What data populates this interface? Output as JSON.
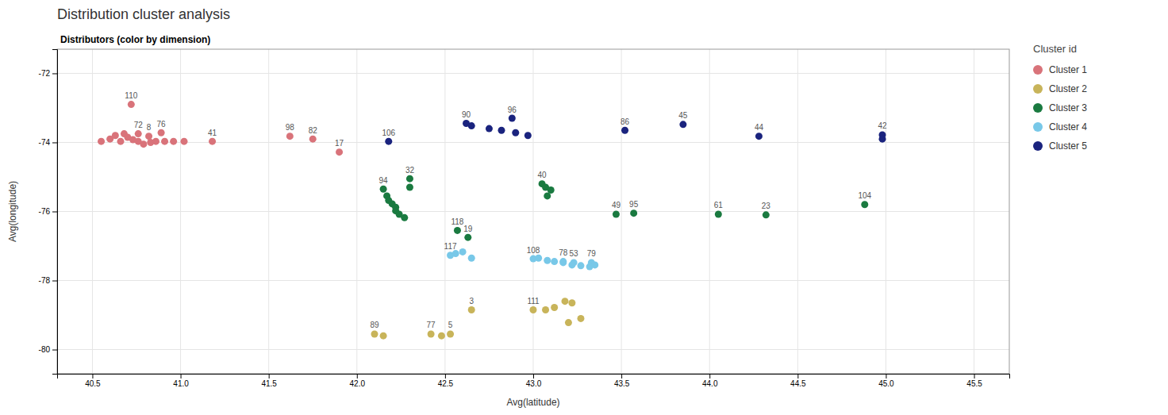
{
  "chart_data": {
    "type": "scatter",
    "title": "Distribution cluster analysis",
    "subtitle": "Distributors (color by dimension)",
    "x_label": "Avg(latitude)",
    "y_label": "Avg(longitude)",
    "xlim": [
      40.3,
      45.7
    ],
    "ylim": [
      -80.7,
      -71.3
    ],
    "xticks": [
      40.5,
      {
        "value": 41,
        "label": "41.0"
      },
      41.5,
      {
        "value": 42,
        "label": "42.0"
      },
      42.5,
      {
        "value": 43,
        "label": "43.0"
      },
      43.5,
      {
        "value": 44,
        "label": "44.0"
      },
      44.5,
      {
        "value": 45,
        "label": "45.0"
      },
      45.5
    ],
    "yticks": [
      -72,
      -74,
      -76,
      -78,
      -80
    ],
    "grid": true,
    "legend": "right",
    "legend_title": "Cluster id",
    "series": [
      {
        "name": "Cluster 1",
        "color": "#d9737a",
        "x": [
          40.72,
          40.76,
          40.82,
          40.89,
          41.18,
          41.62,
          41.75,
          41.9,
          40.55,
          40.6,
          40.63,
          40.66,
          40.68,
          40.7,
          40.73,
          40.76,
          40.79,
          40.83,
          40.86,
          40.91,
          40.96,
          41.02
        ],
        "values": [
          -72.9,
          -73.75,
          -73.82,
          -73.72,
          -73.97,
          -73.82,
          -73.9,
          -74.28,
          -73.97,
          -73.9,
          -73.8,
          -73.97,
          -73.75,
          -73.85,
          -73.92,
          -73.97,
          -74.05,
          -74.0,
          -73.97,
          -73.97,
          -73.97,
          -73.97
        ],
        "annotations": [
          "110",
          "72",
          "8",
          "76",
          "41",
          "98",
          "82",
          "17",
          null,
          null,
          null,
          null,
          null,
          null,
          null,
          null,
          null,
          null,
          null,
          null,
          null,
          null
        ]
      },
      {
        "name": "Cluster 2",
        "color": "#c8b45a",
        "x": [
          42.1,
          42.42,
          42.53,
          42.65,
          43.0,
          42.15,
          42.48,
          43.07,
          43.12,
          43.18,
          43.22,
          43.27,
          43.2
        ],
        "values": [
          -79.55,
          -79.55,
          -79.55,
          -78.85,
          -78.85,
          -79.6,
          -79.6,
          -78.85,
          -78.78,
          -78.6,
          -78.65,
          -79.1,
          -79.22
        ],
        "annotations": [
          "89",
          "77",
          "5",
          "3",
          "111",
          null,
          null,
          null,
          null,
          null,
          null,
          null,
          null
        ]
      },
      {
        "name": "Cluster 3",
        "color": "#1a7a40",
        "x": [
          42.15,
          42.3,
          42.57,
          42.63,
          43.05,
          43.47,
          43.57,
          44.05,
          44.32,
          44.88,
          42.17,
          42.18,
          42.2,
          42.22,
          42.22,
          42.24,
          42.27,
          42.3,
          43.07,
          43.1,
          43.08
        ],
        "values": [
          -75.35,
          -75.05,
          -76.55,
          -76.75,
          -75.2,
          -76.08,
          -76.05,
          -76.08,
          -76.1,
          -75.8,
          -75.55,
          -75.68,
          -75.78,
          -75.88,
          -75.98,
          -76.08,
          -76.18,
          -75.3,
          -75.3,
          -75.38,
          -75.55
        ],
        "annotations": [
          "94",
          "32",
          "118",
          "19",
          "40",
          "49",
          "95",
          "61",
          "23",
          "104",
          null,
          null,
          null,
          null,
          null,
          null,
          null,
          null,
          null,
          null,
          null
        ]
      },
      {
        "name": "Cluster 4",
        "color": "#78c8e8",
        "x": [
          42.53,
          43.0,
          43.17,
          43.23,
          43.33,
          42.56,
          42.6,
          42.65,
          43.03,
          43.08,
          43.12,
          43.17,
          43.22,
          43.27,
          43.32,
          43.35
        ],
        "values": [
          -77.27,
          -77.37,
          -77.45,
          -77.48,
          -77.48,
          -77.22,
          -77.17,
          -77.35,
          -77.35,
          -77.42,
          -77.45,
          -77.48,
          -77.55,
          -77.57,
          -77.6,
          -77.55
        ],
        "annotations": [
          "117",
          "108",
          "78",
          "53",
          "79",
          null,
          null,
          null,
          null,
          null,
          null,
          null,
          null,
          null,
          null,
          null
        ]
      },
      {
        "name": "Cluster 5",
        "color": "#1a237e",
        "x": [
          42.18,
          42.62,
          42.88,
          43.52,
          43.85,
          44.28,
          44.98,
          42.65,
          42.75,
          42.82,
          42.9,
          42.97,
          44.98
        ],
        "values": [
          -73.97,
          -73.45,
          -73.3,
          -73.65,
          -73.48,
          -73.82,
          -73.78,
          -73.52,
          -73.6,
          -73.65,
          -73.72,
          -73.8,
          -73.9
        ],
        "annotations": [
          "106",
          "90",
          "96",
          "86",
          "45",
          "44",
          "42",
          null,
          null,
          null,
          null,
          null,
          null
        ]
      }
    ]
  }
}
